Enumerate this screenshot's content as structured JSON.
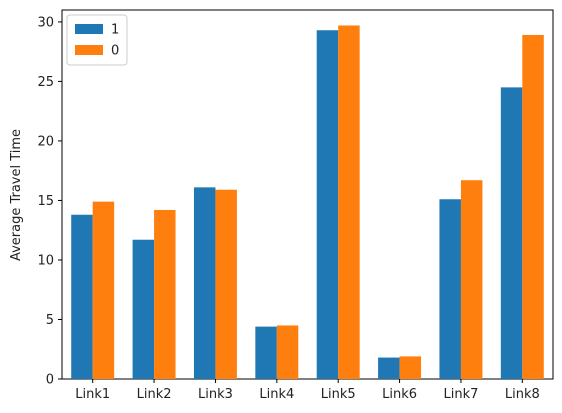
{
  "chart_data": {
    "type": "bar",
    "title": "",
    "xlabel": "",
    "ylabel": "Average Travel Time",
    "categories": [
      "Link1",
      "Link2",
      "Link3",
      "Link4",
      "Link5",
      "Link6",
      "Link7",
      "Link8"
    ],
    "series": [
      {
        "name": "1",
        "color": "#1f77b4",
        "values": [
          13.8,
          11.7,
          16.1,
          4.4,
          29.3,
          1.8,
          15.1,
          24.5
        ]
      },
      {
        "name": "0",
        "color": "#ff7f0e",
        "values": [
          14.9,
          14.2,
          15.9,
          4.5,
          29.7,
          1.9,
          16.7,
          28.9
        ]
      }
    ],
    "ylim": [
      0,
      31
    ],
    "yticks": [
      0,
      5,
      10,
      15,
      20,
      25,
      30
    ],
    "grid": false,
    "legend": "top-left"
  }
}
